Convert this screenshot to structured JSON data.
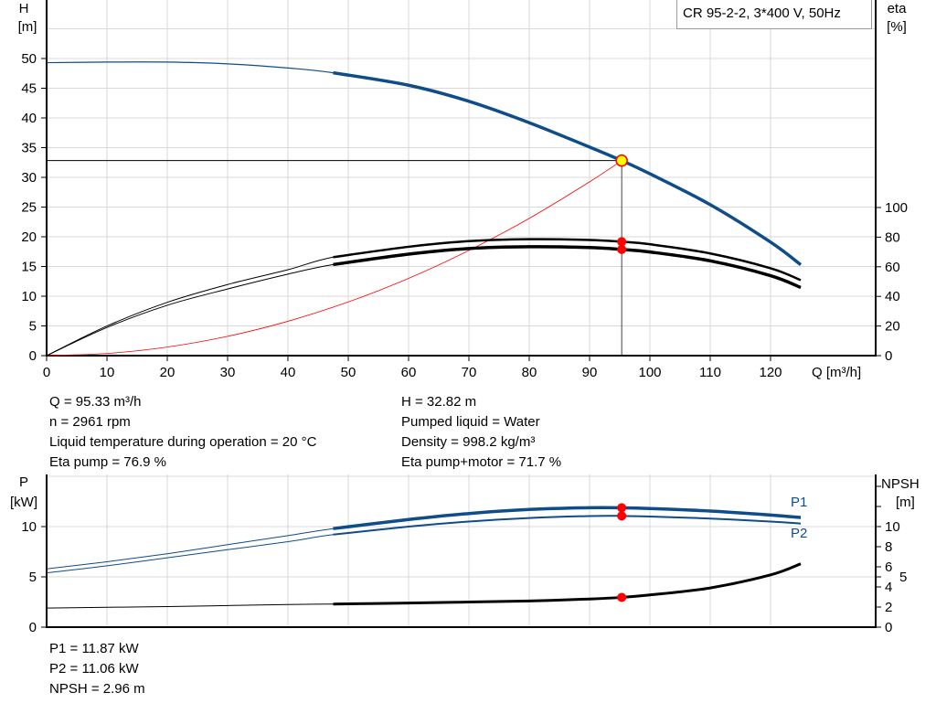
{
  "title": "CR 95-2-2, 3*400 V, 50Hz",
  "colors": {
    "head": "#0f4c8a",
    "eta": "#000000",
    "system": "#ff0000",
    "power": "#0f4c8a",
    "npsh": "#000000",
    "point": "#ff0000",
    "duty_point": "#ffff00",
    "grid": "#d9d9d9"
  },
  "chart_data": [
    {
      "type": "line",
      "xlabel": "Q [m³/h]",
      "ylabel_left": [
        "H",
        "[m]"
      ],
      "ylabel_right": [
        "eta",
        "[%]"
      ],
      "xlim": [
        0,
        137
      ],
      "ylim_left": [
        0,
        60
      ],
      "ylim_right_ticks": [
        0,
        20,
        40,
        60,
        80,
        100
      ],
      "xticks": [
        0,
        10,
        20,
        30,
        40,
        50,
        60,
        70,
        80,
        90,
        100,
        110,
        120
      ],
      "yticks_left": [
        0,
        5,
        10,
        15,
        20,
        25,
        30,
        35,
        40,
        45,
        50
      ],
      "grid": true,
      "series": [
        {
          "key": "head",
          "axis": "left",
          "x": [
            0,
            10,
            20,
            30,
            40,
            47.5,
            60,
            70,
            80,
            90,
            95.33,
            100,
            110,
            120,
            125
          ],
          "y": [
            49.3,
            49.4,
            49.4,
            49.1,
            48.4,
            47.6,
            45.5,
            42.8,
            39.2,
            35.1,
            32.82,
            30.6,
            25.4,
            19.1,
            15.3
          ],
          "thick_from": 47.5
        },
        {
          "key": "eta_pump",
          "axis": "right",
          "x": [
            0,
            10,
            20,
            30,
            40,
            47.5,
            60,
            70,
            80,
            90,
            95.33,
            100,
            110,
            120,
            125
          ],
          "y": [
            0,
            20,
            36,
            48,
            58,
            66.5,
            73.5,
            77.3,
            78.6,
            78.1,
            76.9,
            75.2,
            69,
            59,
            51
          ],
          "thick_from": 47.5
        },
        {
          "key": "eta_total",
          "axis": "right",
          "x": [
            0,
            10,
            20,
            30,
            40,
            47.5,
            60,
            70,
            80,
            90,
            95.33,
            100,
            110,
            120,
            125
          ],
          "y": [
            0,
            19,
            34,
            45,
            55,
            61.5,
            68.5,
            72.3,
            73.5,
            73,
            71.7,
            70,
            64,
            54,
            46
          ],
          "thick_from": 47.5
        },
        {
          "key": "system",
          "axis": "left",
          "x": [
            0,
            10,
            20,
            30,
            40,
            50,
            60,
            70,
            80,
            90,
            95.33
          ],
          "y": [
            0,
            0.36,
            1.44,
            3.25,
            5.78,
            9.03,
            13,
            17.7,
            23.1,
            29.25,
            32.82
          ]
        }
      ],
      "duty_point": {
        "q": 95.33,
        "h": 32.82,
        "eta_pump": 76.9,
        "eta_total": 71.7
      }
    },
    {
      "type": "line",
      "ylabel_left": [
        "P",
        "[kW]"
      ],
      "ylabel_right": [
        "NPSH",
        "[m]"
      ],
      "xlim": [
        0,
        137
      ],
      "yticks_left": [
        0,
        5,
        10
      ],
      "yticks_right": [
        0,
        2,
        4,
        5,
        6,
        8,
        10
      ],
      "grid": true,
      "series": [
        {
          "key": "P1",
          "name": "P1",
          "axis": "left",
          "x": [
            0,
            10,
            20,
            30,
            40,
            47.5,
            60,
            70,
            80,
            90,
            95.33,
            100,
            110,
            120,
            125
          ],
          "y": [
            5.8,
            6.5,
            7.3,
            8.2,
            9.1,
            9.8,
            10.7,
            11.3,
            11.7,
            11.88,
            11.87,
            11.8,
            11.55,
            11.15,
            10.9
          ],
          "thick_from": 47.5
        },
        {
          "key": "P2",
          "name": "P2",
          "axis": "left",
          "x": [
            0,
            10,
            20,
            30,
            40,
            47.5,
            60,
            70,
            80,
            90,
            95.33,
            100,
            110,
            120,
            125
          ],
          "y": [
            5.4,
            6.1,
            6.9,
            7.7,
            8.5,
            9.2,
            10.0,
            10.5,
            10.85,
            11.05,
            11.06,
            11.0,
            10.8,
            10.5,
            10.3
          ],
          "thick_from": 47.5
        },
        {
          "key": "npsh",
          "axis": "right",
          "x": [
            0,
            20,
            40,
            47.5,
            60,
            70,
            80,
            90,
            95.33,
            100,
            110,
            120,
            125
          ],
          "y": [
            1.9,
            2.05,
            2.25,
            2.3,
            2.4,
            2.5,
            2.6,
            2.8,
            2.96,
            3.2,
            3.9,
            5.2,
            6.3
          ],
          "thick_from": 47.5
        }
      ],
      "duty_point": {
        "q": 95.33,
        "p1": 11.87,
        "p2": 11.06,
        "npsh": 2.96
      }
    }
  ],
  "readout_top_left": [
    "Q = 95.33 m³/h",
    "n = 2961 rpm",
    "Liquid temperature during operation = 20 °C",
    "Eta pump = 76.9 %"
  ],
  "readout_top_right": [
    "H = 32.82 m",
    "Pumped liquid = Water",
    "Density = 998.2 kg/m³",
    "Eta pump+motor = 71.7 %"
  ],
  "readout_bottom": [
    "P1 = 11.87 kW",
    "P2 = 11.06 kW",
    "NPSH = 2.96 m"
  ]
}
